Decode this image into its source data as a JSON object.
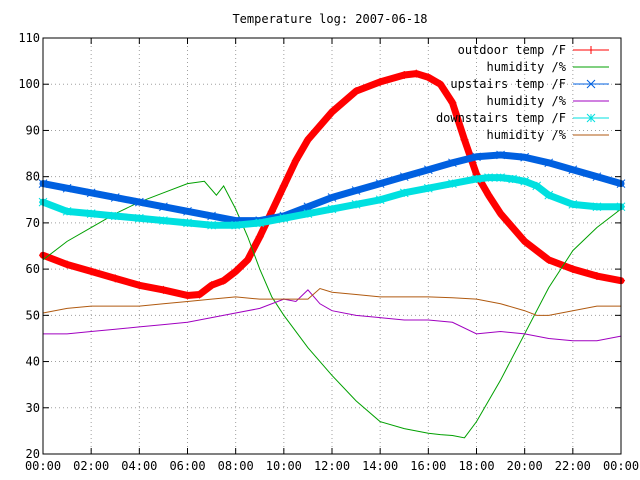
{
  "chart_data": {
    "type": "line",
    "title": "Temperature log: 2007-06-18",
    "xlabel": "",
    "ylabel": "",
    "xlim": [
      0,
      24
    ],
    "ylim": [
      20,
      110
    ],
    "grid": true,
    "legend_position": "top-right",
    "x_ticks": [
      0,
      2,
      4,
      6,
      8,
      10,
      12,
      14,
      16,
      18,
      20,
      22,
      24
    ],
    "x_tick_labels": [
      "00:00",
      "02:00",
      "04:00",
      "06:00",
      "08:00",
      "10:00",
      "12:00",
      "14:00",
      "16:00",
      "18:00",
      "20:00",
      "22:00",
      "00:00"
    ],
    "y_ticks": [
      20,
      30,
      40,
      50,
      60,
      70,
      80,
      90,
      100,
      110
    ],
    "y_tick_labels": [
      "20",
      "30",
      "40",
      "50",
      "60",
      "70",
      "80",
      "90",
      "100",
      "110"
    ],
    "series": [
      {
        "name": "outdoor temp /F",
        "color": "#ff0000",
        "marker": "plus",
        "x": [
          0,
          1,
          2,
          3,
          4,
          5,
          6,
          6.5,
          7,
          7.5,
          8,
          8.5,
          9,
          9.5,
          10,
          10.5,
          11,
          12,
          13,
          14,
          15,
          15.5,
          16,
          16.5,
          17,
          17.5,
          18,
          18.5,
          19,
          20,
          21,
          22,
          23,
          24
        ],
        "y": [
          63,
          61,
          59.5,
          58,
          56.5,
          55.5,
          54.3,
          54.5,
          56.5,
          57.5,
          59.5,
          62,
          67,
          72.5,
          78,
          83.5,
          88,
          94,
          98.5,
          100.5,
          102,
          102.3,
          101.5,
          100,
          96,
          88,
          80.5,
          76,
          72,
          66,
          62,
          60,
          58.5,
          57.5
        ]
      },
      {
        "name": "humidity /%",
        "color": "#00a000",
        "marker": "none",
        "x": [
          0,
          1,
          2,
          3,
          4,
          5,
          6,
          6.7,
          7.2,
          7.5,
          8,
          8.5,
          9,
          9.5,
          10,
          11,
          12,
          13,
          14,
          15,
          16,
          16.5,
          17,
          17.5,
          18,
          19,
          20,
          21,
          22,
          23,
          24
        ],
        "y": [
          62,
          66,
          69,
          72,
          74.5,
          76.5,
          78.5,
          79,
          76,
          78,
          73,
          67,
          60,
          54,
          50,
          43,
          37,
          31.5,
          27,
          25.5,
          24.5,
          24.2,
          24,
          23.5,
          27,
          36,
          46,
          56,
          64,
          69,
          73
        ]
      },
      {
        "name": "upstairs temp /F",
        "color": "#0060e0",
        "marker": "cross",
        "x": [
          0,
          1,
          2,
          3,
          4,
          5,
          6,
          7,
          8,
          9,
          10,
          11,
          12,
          13,
          14,
          15,
          16,
          17,
          18,
          19,
          20,
          21,
          22,
          23,
          24
        ],
        "y": [
          78.5,
          77.5,
          76.5,
          75.5,
          74.5,
          73.5,
          72.5,
          71.5,
          70.5,
          70.5,
          71.5,
          73.5,
          75.5,
          77,
          78.5,
          80,
          81.5,
          83,
          84.3,
          84.7,
          84.2,
          83,
          81.5,
          80,
          78.5
        ]
      },
      {
        "name": "humidity /%",
        "color": "#a000c0",
        "marker": "none",
        "x": [
          0,
          1,
          2,
          3,
          4,
          5,
          6,
          7,
          8,
          9,
          10,
          10.5,
          11,
          11.5,
          12,
          13,
          14,
          15,
          16,
          17,
          18,
          19,
          20,
          21,
          22,
          23,
          24
        ],
        "y": [
          46,
          46,
          46.5,
          47,
          47.5,
          48,
          48.5,
          49.5,
          50.5,
          51.5,
          53.5,
          53,
          55.5,
          52.5,
          51,
          50,
          49.5,
          49,
          49,
          48.5,
          46,
          46.5,
          46,
          45,
          44.5,
          44.5,
          45.5
        ]
      },
      {
        "name": "downstairs temp /F",
        "color": "#00e0e0",
        "marker": "star",
        "x": [
          0,
          1,
          2,
          3,
          4,
          5,
          6,
          7,
          8,
          9,
          10,
          11,
          12,
          13,
          14,
          15,
          16,
          17,
          18,
          18.5,
          19,
          19.5,
          20,
          20.5,
          21,
          22,
          23,
          24
        ],
        "y": [
          74.5,
          72.5,
          72,
          71.5,
          71,
          70.5,
          70,
          69.5,
          69.5,
          70,
          71,
          72,
          73,
          74,
          75,
          76.5,
          77.5,
          78.5,
          79.5,
          79.8,
          79.8,
          79.5,
          79,
          78,
          76,
          74,
          73.5,
          73.5
        ]
      },
      {
        "name": "humidity /%",
        "color": "#b05a10",
        "marker": "none",
        "x": [
          0,
          1,
          2,
          3,
          4,
          5,
          6,
          7,
          8,
          9,
          10,
          11,
          11.5,
          12,
          13,
          14,
          15,
          16,
          17,
          18,
          19,
          20,
          20.5,
          21,
          22,
          23,
          24
        ],
        "y": [
          50.5,
          51.5,
          52,
          52,
          52,
          52.5,
          53,
          53.5,
          54,
          53.5,
          53.5,
          53.5,
          55.8,
          55,
          54.5,
          54,
          54,
          54,
          53.8,
          53.5,
          52.5,
          51,
          50,
          50,
          51,
          52,
          52
        ]
      }
    ]
  }
}
